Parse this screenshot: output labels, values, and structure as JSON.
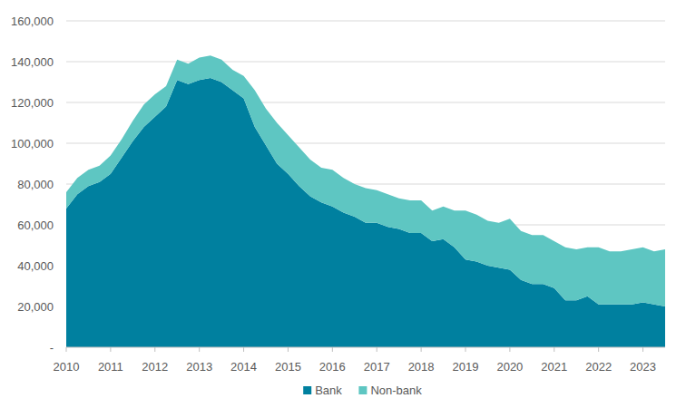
{
  "chart_data": {
    "type": "area",
    "stacked": true,
    "grid": true,
    "legend": "bottom",
    "x": [
      2010,
      2010.25,
      2010.5,
      2010.75,
      2011,
      2011.25,
      2011.5,
      2011.75,
      2012,
      2012.25,
      2012.5,
      2012.75,
      2013,
      2013.25,
      2013.5,
      2013.75,
      2014,
      2014.25,
      2014.5,
      2014.75,
      2015,
      2015.25,
      2015.5,
      2015.75,
      2016,
      2016.25,
      2016.5,
      2016.75,
      2017,
      2017.25,
      2017.5,
      2017.75,
      2018,
      2018.25,
      2018.5,
      2018.75,
      2019,
      2019.25,
      2019.5,
      2019.75,
      2020,
      2020.25,
      2020.5,
      2020.75,
      2021,
      2021.25,
      2021.5,
      2021.75,
      2022,
      2022.25,
      2022.5,
      2022.75,
      2023,
      2023.25,
      2023.5
    ],
    "series": [
      {
        "name": "Bank",
        "color": "#00809f",
        "values": [
          68000,
          75000,
          79000,
          81000,
          85000,
          93000,
          101000,
          108000,
          113000,
          118000,
          131000,
          129000,
          131000,
          132000,
          130000,
          126000,
          122000,
          108000,
          99000,
          90000,
          85000,
          79000,
          74000,
          71000,
          69000,
          66000,
          64000,
          61000,
          61000,
          59000,
          58000,
          56000,
          56000,
          52000,
          53000,
          49000,
          43000,
          42000,
          40000,
          39000,
          38000,
          33000,
          31000,
          31000,
          29000,
          23000,
          23000,
          25000,
          21000,
          21000,
          21000,
          21000,
          22000,
          21000,
          20000
        ]
      },
      {
        "name": "Non-bank",
        "color": "#5ec6c2",
        "values": [
          8000,
          8000,
          8000,
          8000,
          9000,
          9000,
          10000,
          11000,
          11000,
          10000,
          10000,
          10000,
          11000,
          11000,
          11000,
          10000,
          11000,
          18000,
          18000,
          20000,
          19000,
          19000,
          18000,
          17000,
          18000,
          17000,
          16000,
          17000,
          16000,
          16000,
          15000,
          16000,
          16000,
          15000,
          16000,
          18000,
          24000,
          23000,
          22000,
          22000,
          25000,
          24000,
          24000,
          24000,
          23000,
          26000,
          25000,
          24000,
          28000,
          26000,
          26000,
          27000,
          27000,
          26000,
          28000
        ]
      }
    ],
    "xlim": [
      2010,
      2023.5
    ],
    "xticks": [
      2010,
      2011,
      2012,
      2013,
      2014,
      2015,
      2016,
      2017,
      2018,
      2019,
      2020,
      2021,
      2022,
      2023
    ],
    "ylim": [
      0,
      160000
    ],
    "yticks": [
      {
        "value": 0,
        "label": "-"
      },
      {
        "value": 20000,
        "label": "20,000"
      },
      {
        "value": 40000,
        "label": "40,000"
      },
      {
        "value": 60000,
        "label": "60,000"
      },
      {
        "value": 80000,
        "label": "80,000"
      },
      {
        "value": 100000,
        "label": "100,000"
      },
      {
        "value": 120000,
        "label": "120,000"
      },
      {
        "value": 140000,
        "label": "140,000"
      },
      {
        "value": 160000,
        "label": "160,000"
      }
    ]
  }
}
